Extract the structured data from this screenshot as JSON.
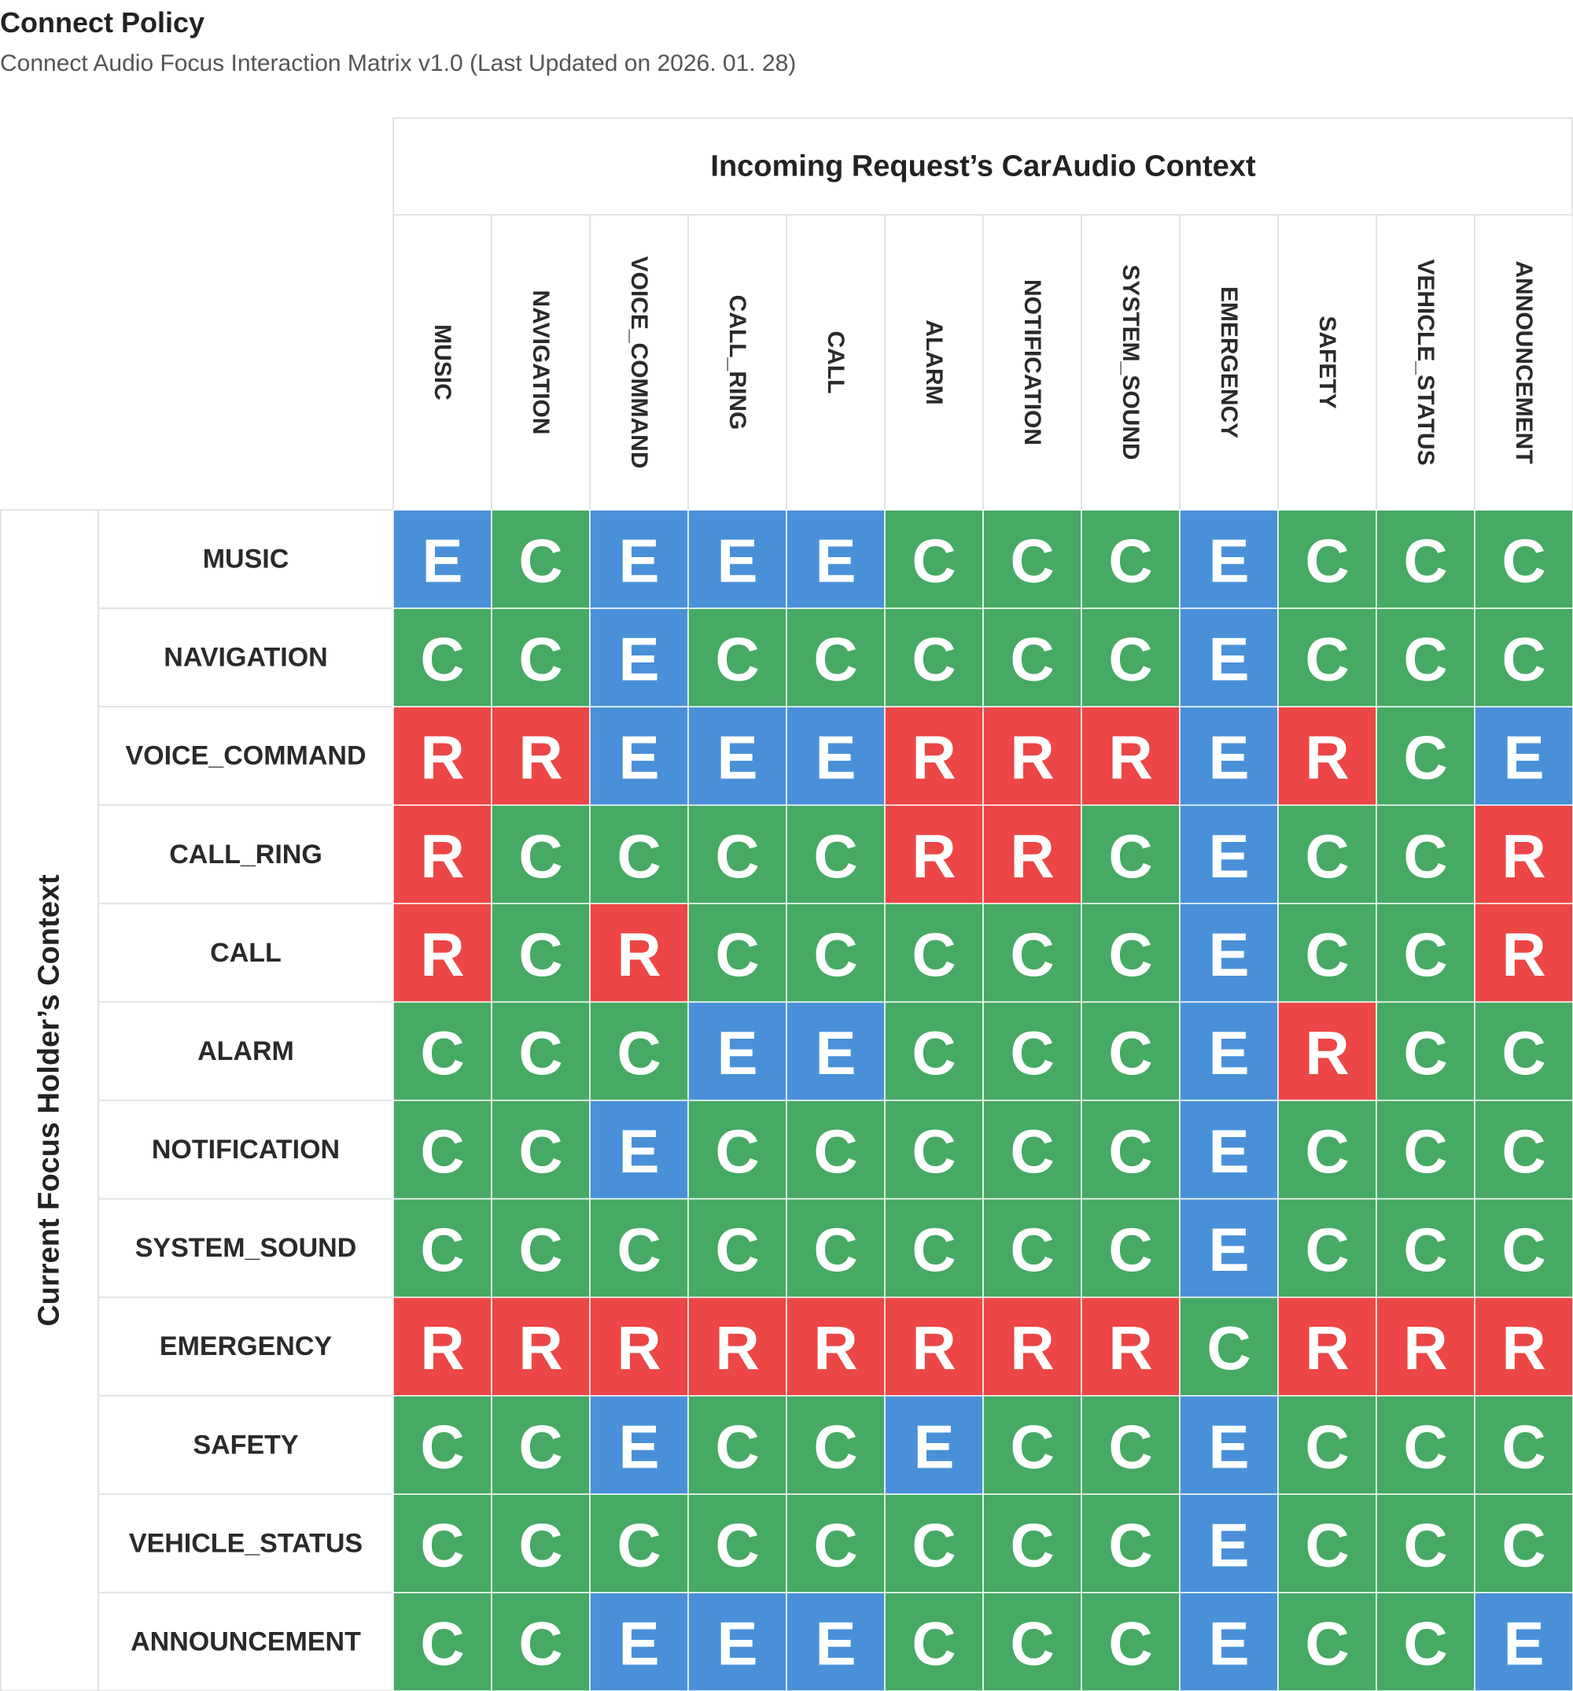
{
  "header": {
    "title": "Connect Policy",
    "subtitle": "Connect Audio Focus Interaction Matrix v1.0 (Last Updated on 2026. 01. 28)"
  },
  "colors": {
    "E": "#4a90d9",
    "C": "#46a964",
    "R": "#ec4646",
    "grid": "#e3e3e3",
    "label_text": "#2a2a2a"
  },
  "chart_data": {
    "type": "heatmap",
    "x_axis_label": "Incoming Request’s CarAudio Context",
    "y_axis_label": "Current Focus Holder’s Context",
    "columns": [
      "MUSIC",
      "NAVIGATION",
      "VOICE_COMMAND",
      "CALL_RING",
      "CALL",
      "ALARM",
      "NOTIFICATION",
      "SYSTEM_SOUND",
      "EMERGENCY",
      "SAFETY",
      "VEHICLE_STATUS",
      "ANNOUNCEMENT"
    ],
    "rows": [
      "MUSIC",
      "NAVIGATION",
      "VOICE_COMMAND",
      "CALL_RING",
      "CALL",
      "ALARM",
      "NOTIFICATION",
      "SYSTEM_SOUND",
      "EMERGENCY",
      "SAFETY",
      "VEHICLE_STATUS",
      "ANNOUNCEMENT"
    ],
    "values": [
      [
        "E",
        "C",
        "E",
        "E",
        "E",
        "C",
        "C",
        "C",
        "E",
        "C",
        "C",
        "C"
      ],
      [
        "C",
        "C",
        "E",
        "C",
        "C",
        "C",
        "C",
        "C",
        "E",
        "C",
        "C",
        "C"
      ],
      [
        "R",
        "R",
        "E",
        "E",
        "E",
        "R",
        "R",
        "R",
        "E",
        "R",
        "C",
        "E"
      ],
      [
        "R",
        "C",
        "C",
        "C",
        "C",
        "R",
        "R",
        "C",
        "E",
        "C",
        "C",
        "R"
      ],
      [
        "R",
        "C",
        "R",
        "C",
        "C",
        "C",
        "C",
        "C",
        "E",
        "C",
        "C",
        "R"
      ],
      [
        "C",
        "C",
        "C",
        "E",
        "E",
        "C",
        "C",
        "C",
        "E",
        "R",
        "C",
        "C"
      ],
      [
        "C",
        "C",
        "E",
        "C",
        "C",
        "C",
        "C",
        "C",
        "E",
        "C",
        "C",
        "C"
      ],
      [
        "C",
        "C",
        "C",
        "C",
        "C",
        "C",
        "C",
        "C",
        "E",
        "C",
        "C",
        "C"
      ],
      [
        "R",
        "R",
        "R",
        "R",
        "R",
        "R",
        "R",
        "R",
        "C",
        "R",
        "R",
        "R"
      ],
      [
        "C",
        "C",
        "E",
        "C",
        "C",
        "E",
        "C",
        "C",
        "E",
        "C",
        "C",
        "C"
      ],
      [
        "C",
        "C",
        "C",
        "C",
        "C",
        "C",
        "C",
        "C",
        "E",
        "C",
        "C",
        "C"
      ],
      [
        "C",
        "C",
        "E",
        "E",
        "E",
        "C",
        "C",
        "C",
        "E",
        "C",
        "C",
        "E"
      ]
    ]
  }
}
